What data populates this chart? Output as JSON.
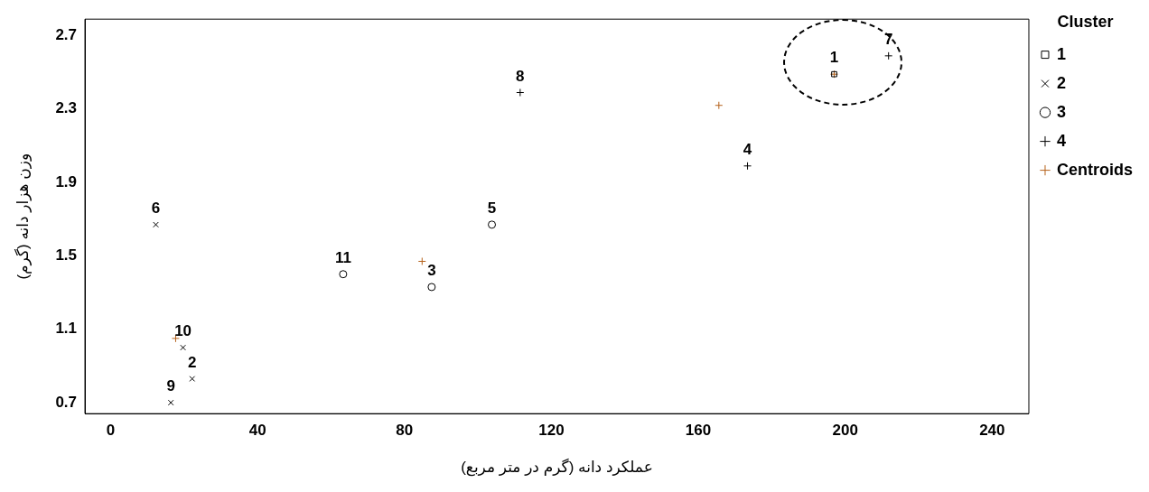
{
  "chart_data": {
    "type": "scatter",
    "xlabel": "عملکرد دانه (گرم در متر مربع)",
    "ylabel": "وزن هزار دانه (گرم)",
    "legend_title": "Cluster",
    "legend": "right",
    "grid": false,
    "xlim": [
      -7,
      250
    ],
    "xticks": [
      0,
      40,
      80,
      120,
      160,
      200,
      240
    ],
    "ylim": [
      0.64,
      2.79
    ],
    "yticks": [
      0.7,
      1.1,
      1.5,
      1.9,
      2.3,
      2.7
    ],
    "series": [
      {
        "name": "1",
        "color": "#000000",
        "marker": "square",
        "x": [
          197
        ],
        "values": [
          2.49
        ]
      },
      {
        "name": "2",
        "color": "#000000",
        "marker": "cross",
        "x": [
          12.3,
          22.2,
          16.4,
          19.7
        ],
        "values": [
          1.67,
          0.83,
          0.7,
          1.0
        ]
      },
      {
        "name": "3",
        "color": "#000000",
        "marker": "circle",
        "x": [
          87.4,
          103.8,
          63.3
        ],
        "values": [
          1.33,
          1.67,
          1.4
        ]
      },
      {
        "name": "4",
        "color": "#000000",
        "marker": "plus",
        "x": [
          173.4,
          211.8,
          111.5
        ],
        "values": [
          1.99,
          2.59,
          2.39
        ]
      },
      {
        "name": "Centroids",
        "color": "#b5621b",
        "marker": "plus",
        "x": [
          197,
          17.7,
          84.8,
          165.6
        ],
        "values": [
          2.49,
          1.05,
          1.47,
          2.32
        ]
      }
    ],
    "annotations": [
      {
        "text": "1",
        "x": 197,
        "y": 2.49
      },
      {
        "text": "2",
        "x": 22.2,
        "y": 0.83
      },
      {
        "text": "3",
        "x": 87.4,
        "y": 1.33
      },
      {
        "text": "4",
        "x": 173.4,
        "y": 1.99
      },
      {
        "text": "5",
        "x": 103.8,
        "y": 1.67
      },
      {
        "text": "6",
        "x": 12.3,
        "y": 1.67
      },
      {
        "text": "7",
        "x": 211.8,
        "y": 2.59
      },
      {
        "text": "8",
        "x": 111.5,
        "y": 2.39
      },
      {
        "text": "9",
        "x": 16.4,
        "y": 0.7
      },
      {
        "text": "10",
        "x": 19.7,
        "y": 1.0
      },
      {
        "text": "11",
        "x": 63.3,
        "y": 1.4
      }
    ]
  }
}
